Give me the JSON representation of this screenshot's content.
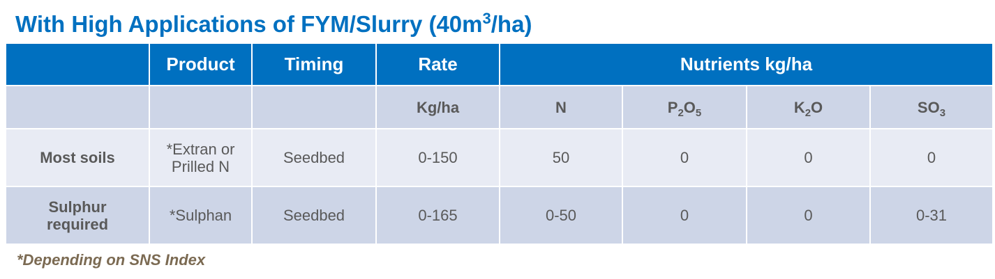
{
  "title": {
    "text": "With High Applications of FYM/Slurry (40m",
    "superscript": "3",
    "suffix": "/ha)"
  },
  "table": {
    "header": [
      "Product",
      "Timing",
      "Rate",
      "Nutrients kg/ha"
    ],
    "units": {
      "rate": "Kg/ha",
      "n": "N",
      "p2o5": [
        "P",
        "2",
        "O",
        "5"
      ],
      "k2o": [
        "K",
        "2",
        "O"
      ],
      "so3": [
        "SO",
        "3"
      ]
    },
    "rows": [
      {
        "label": [
          "Most soils"
        ],
        "product": [
          "*Extran or",
          "Prilled N"
        ],
        "timing": "Seedbed",
        "rate": "0-150",
        "nutrients": [
          "50",
          "0",
          "0",
          "0"
        ]
      },
      {
        "label": [
          "Sulphur",
          "required"
        ],
        "product": [
          "*Sulphan"
        ],
        "timing": "Seedbed",
        "rate": "0-165",
        "nutrients": [
          "0-50",
          "0",
          "0",
          "0-31"
        ]
      }
    ]
  },
  "footnote": "*Depending on SNS Index"
}
